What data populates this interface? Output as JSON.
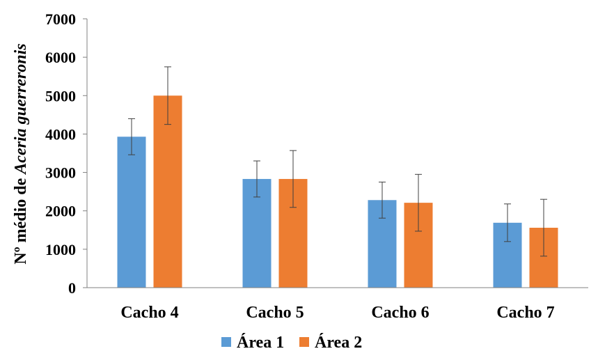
{
  "chart_data": {
    "type": "bar",
    "categories": [
      "Cacho 4",
      "Cacho 5",
      "Cacho 6",
      "Cacho 7"
    ],
    "series": [
      {
        "name": "Área 1",
        "color": "#5b9bd5",
        "values": [
          3930,
          2830,
          2280,
          1690
        ],
        "errors": [
          470,
          470,
          470,
          490
        ]
      },
      {
        "name": "Área 2",
        "color": "#ed7d31",
        "values": [
          5000,
          2830,
          2210,
          1560
        ],
        "errors": [
          750,
          740,
          740,
          740
        ]
      }
    ],
    "ylabel": {
      "prefix": "Nº médio de ",
      "italic": "Aceria guerreronis"
    },
    "ylim": [
      0,
      7000
    ],
    "yticks": [
      0,
      1000,
      2000,
      3000,
      4000,
      5000,
      6000,
      7000
    ],
    "grid": false,
    "legend_position": "bottom-center"
  }
}
